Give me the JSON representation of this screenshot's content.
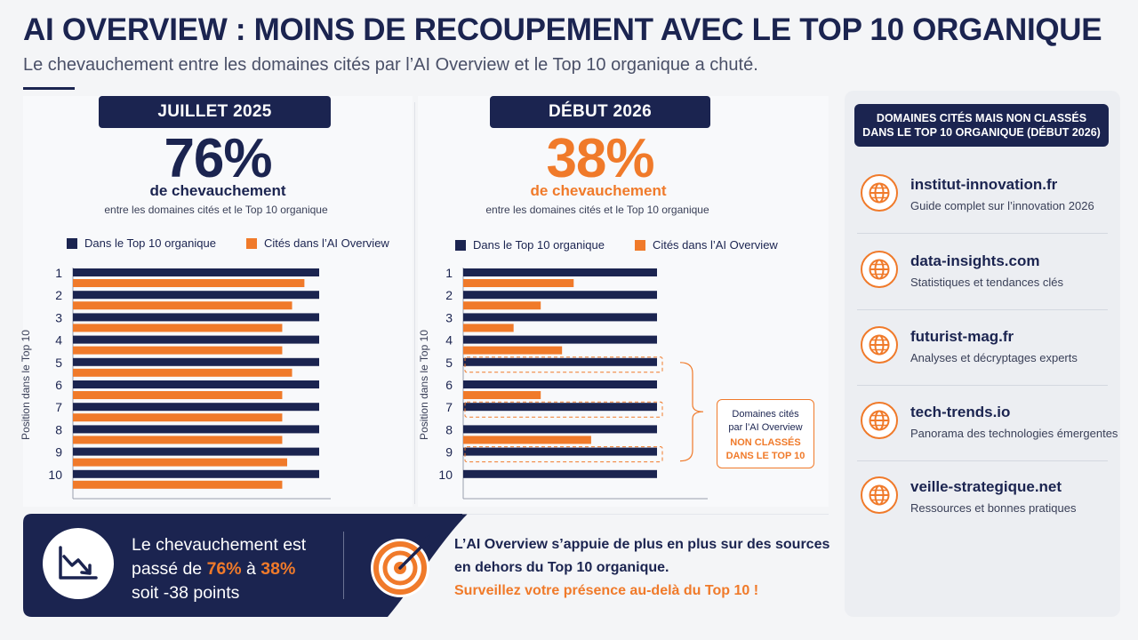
{
  "header": {
    "title": "AI OVERVIEW : MOINS DE RECOUPEMENT AVEC LE TOP 10 ORGANIQUE",
    "subtitle": "Le chevauchement entre les domaines cités par l’AI Overview et le Top 10 organique a chuté."
  },
  "colors": {
    "navy": "#1b2450",
    "orange": "#f07a2a"
  },
  "left_panel": {
    "period": "JUILLET 2025",
    "pct": "76%",
    "pct_label": "de chevauchement",
    "pct_sub": "entre les domaines cités et le Top 10 organique"
  },
  "right_panel": {
    "period": "DÉBUT 2026",
    "pct": "38%",
    "pct_label": "de chevauchement",
    "pct_sub": "entre les domaines cités et le Top 10 organique",
    "callout_line1": "Domaines cités",
    "callout_line2": "par l’AI Overview",
    "callout_line3": "NON CLASSÉS",
    "callout_line4": "DANS LE TOP 10"
  },
  "chart_data": [
    {
      "type": "bar",
      "ylabel": "Position dans le Top 10",
      "categories": [
        "1",
        "2",
        "3",
        "4",
        "5",
        "6",
        "7",
        "8",
        "9",
        "10"
      ],
      "series": [
        {
          "name": "Dans le Top 10 organique",
          "values": [
            1,
            1,
            1,
            1,
            1,
            1,
            1,
            1,
            1,
            1
          ]
        },
        {
          "name": "Cités dans l’AI Overview",
          "values": [
            0.94,
            0.89,
            0.85,
            0.85,
            0.89,
            0.85,
            0.85,
            0.85,
            0.87,
            0.85
          ]
        }
      ]
    },
    {
      "type": "bar",
      "ylabel": "Position dans le Top 10",
      "categories": [
        "1",
        "2",
        "3",
        "4",
        "5",
        "6",
        "7",
        "8",
        "9",
        "10"
      ],
      "series": [
        {
          "name": "Dans le Top 10 organique",
          "values": [
            1,
            1,
            1,
            1,
            1,
            1,
            1,
            1,
            1,
            1
          ]
        },
        {
          "name": "Cités dans l’AI Overview",
          "values": [
            0.57,
            0.4,
            0.26,
            0.51,
            null,
            0.4,
            null,
            0.66,
            null,
            null
          ]
        }
      ],
      "not_ranked_positions": [
        "5",
        "7",
        "9"
      ]
    }
  ],
  "sidebar": {
    "heading_line1": "DOMAINES CITÉS MAIS NON CLASSÉS",
    "heading_line2": "DANS LE TOP 10 ORGANIQUE (DÉBUT 2026)",
    "items": [
      {
        "name": "institut-innovation.fr",
        "desc": "Guide complet sur l’innovation 2026",
        "icon": "globe-icon"
      },
      {
        "name": "data-insights.com",
        "desc": "Statistiques et tendances clés",
        "icon": "globe-icon"
      },
      {
        "name": "futurist-mag.fr",
        "desc": "Analyses et décryptages experts",
        "icon": "globe-icon"
      },
      {
        "name": "tech-trends.io",
        "desc": "Panorama des technologies émergentes",
        "icon": "globe-icon"
      },
      {
        "name": "veille-strategique.net",
        "desc": "Ressources et bonnes pratiques",
        "icon": "globe-icon"
      }
    ]
  },
  "bottom": {
    "line1": "Le chevauchement est",
    "line2_a": "passé de ",
    "line2_b": "76%",
    "line2_c": " à ",
    "line2_d": "38%",
    "line3": "soit -38 points",
    "msg1": "L’AI Overview s’appuie de plus en plus sur des sources",
    "msg2": "en dehors du Top 10 organique.",
    "msg3": "Surveillez votre présence au-delà du Top 10 !"
  }
}
